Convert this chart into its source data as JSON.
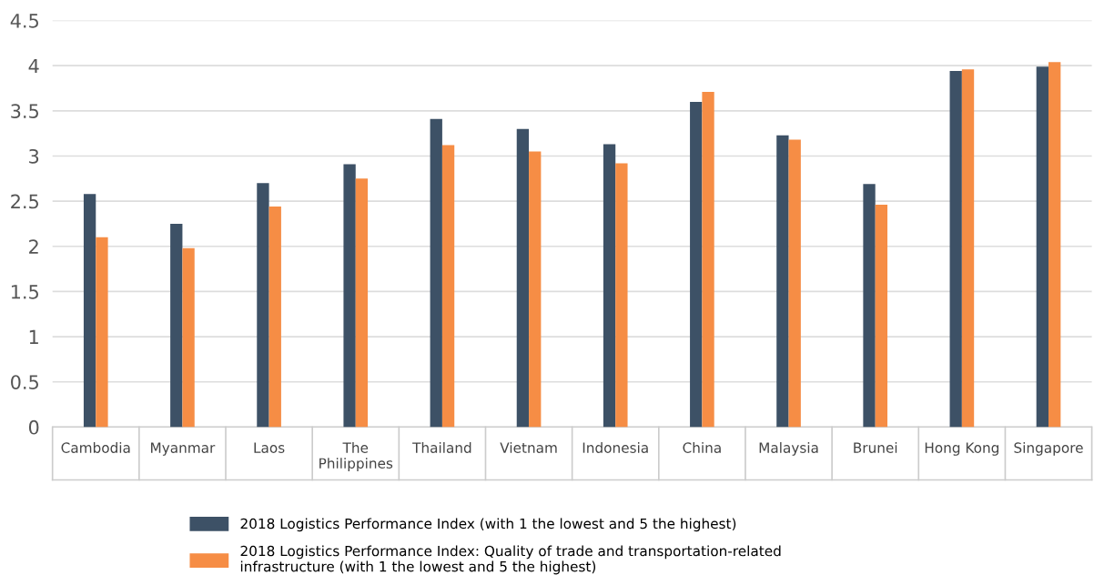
{
  "chart_data": {
    "type": "bar",
    "categories": [
      "Cambodia",
      "Myanmar",
      "Laos",
      "The Philippines",
      "Thailand",
      "Vietnam",
      "Indonesia",
      "China",
      "Malaysia",
      "Brunei",
      "Hong Kong",
      "Singapore"
    ],
    "series": [
      {
        "name": "2018 Logistics Performance Index (with 1 the lowest and 5 the highest)",
        "color": "#3d5166",
        "values": [
          2.58,
          2.25,
          2.7,
          2.91,
          3.41,
          3.3,
          3.13,
          3.6,
          3.23,
          2.69,
          3.94,
          3.99
        ]
      },
      {
        "name": "2018 Logistics Performance Index: Quality of trade and transportation-related infrastructure (with 1 the lowest and 5 the highest)",
        "color": "#f68d45",
        "values": [
          2.1,
          1.98,
          2.44,
          2.75,
          3.12,
          3.05,
          2.92,
          3.71,
          3.18,
          2.46,
          3.96,
          4.04
        ]
      }
    ],
    "ylim": [
      0,
      4.5
    ],
    "yticks": [
      0,
      0.5,
      1,
      1.5,
      2,
      2.5,
      3,
      3.5,
      4,
      4.5
    ],
    "grid": "y",
    "legend": "bottom"
  }
}
